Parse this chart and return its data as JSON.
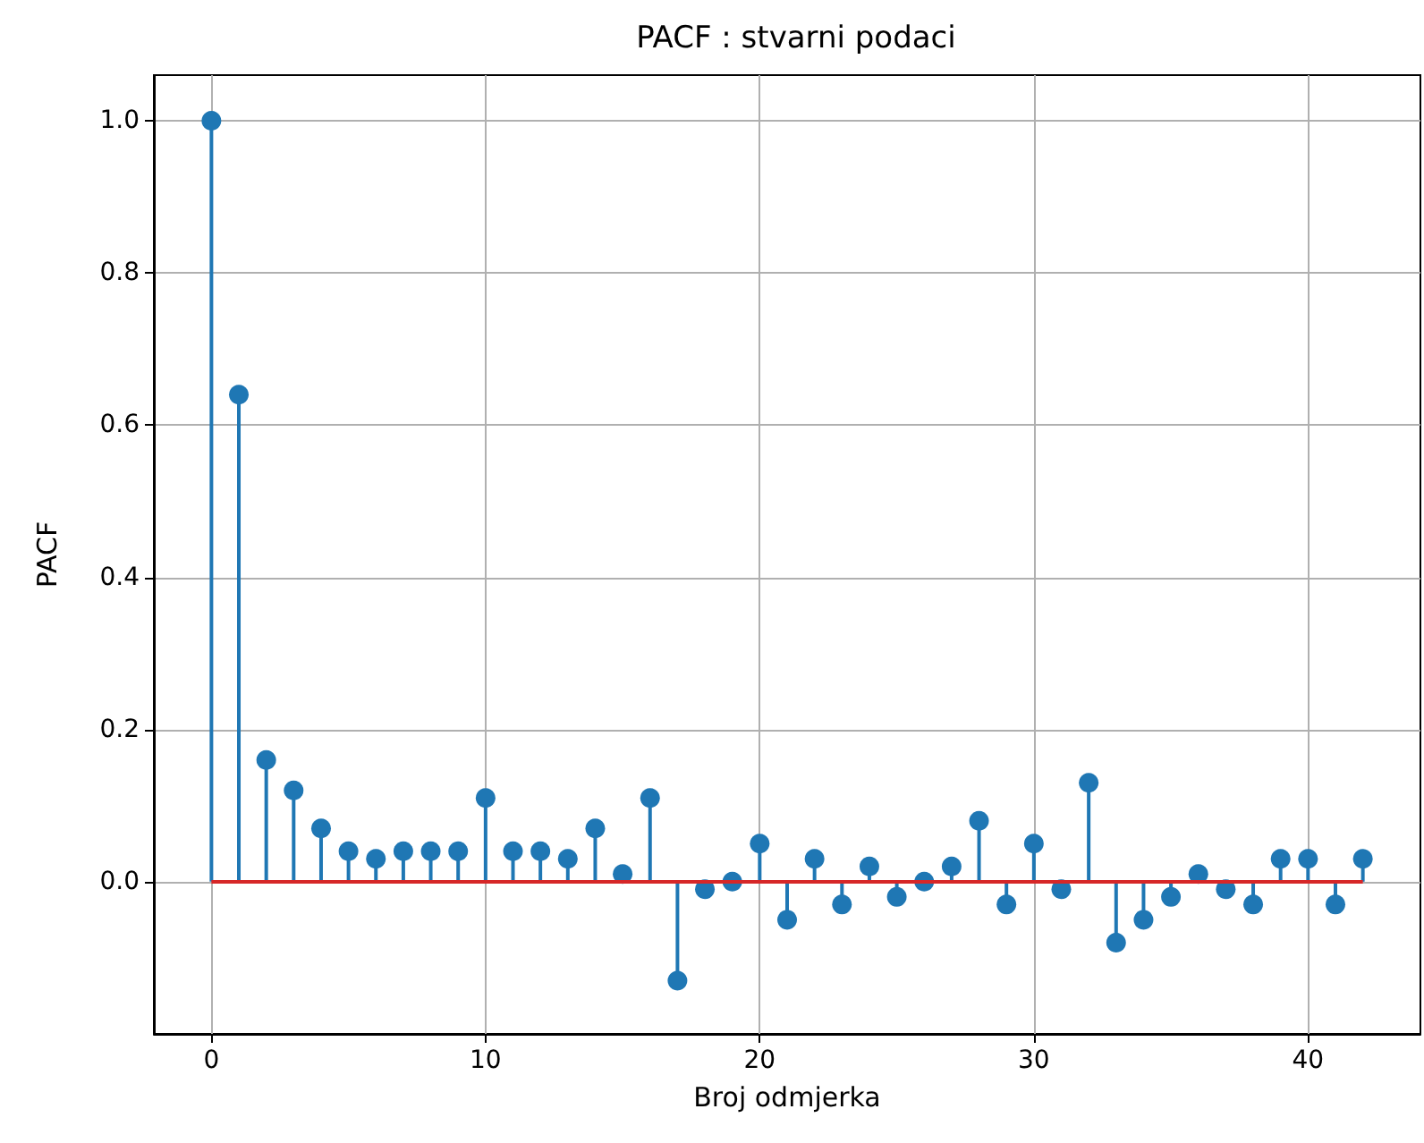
{
  "chart_data": {
    "type": "lollipop",
    "title": "PACF : stvarni podaci",
    "xlabel": "Broj odmjerka",
    "ylabel": "PACF",
    "x": [
      0,
      1,
      2,
      3,
      4,
      5,
      6,
      7,
      8,
      9,
      10,
      11,
      12,
      13,
      14,
      15,
      16,
      17,
      18,
      19,
      20,
      21,
      22,
      23,
      24,
      25,
      26,
      27,
      28,
      29,
      30,
      31,
      32,
      33,
      34,
      35,
      36,
      37,
      38,
      39,
      40,
      41,
      42
    ],
    "series": [
      {
        "color": "#1f77b4",
        "values": [
          1.0,
          0.64,
          0.16,
          0.12,
          0.07,
          0.04,
          0.03,
          0.04,
          0.04,
          0.04,
          0.11,
          0.04,
          0.04,
          0.03,
          0.07,
          0.01,
          0.11,
          -0.13,
          -0.01,
          0.0,
          0.05,
          -0.05,
          0.03,
          -0.03,
          0.02,
          -0.02,
          0.0,
          0.02,
          0.08,
          -0.03,
          0.05,
          -0.01,
          0.13,
          -0.08,
          -0.05,
          -0.02,
          0.01,
          -0.01,
          -0.03,
          0.03,
          0.03,
          -0.03,
          0.03
        ]
      }
    ],
    "xlim": [
      -2.1,
      44.1
    ],
    "ylim": [
      -0.2,
      1.06
    ],
    "xticks": [
      0,
      10,
      20,
      30,
      40
    ],
    "yticks": [
      {
        "value": 0,
        "label": "0.0"
      },
      {
        "value": 0.2,
        "label": "0.2"
      },
      {
        "value": 0.4,
        "label": "0.4"
      },
      {
        "value": 0.6,
        "label": "0.6"
      },
      {
        "value": 0.8,
        "label": "0.8"
      },
      {
        "value": 1,
        "label": "1.0"
      }
    ],
    "ref_lines": [
      {
        "axis": "y",
        "value": 0,
        "color": "#d62728"
      }
    ],
    "grid": true,
    "marker": "circle"
  }
}
